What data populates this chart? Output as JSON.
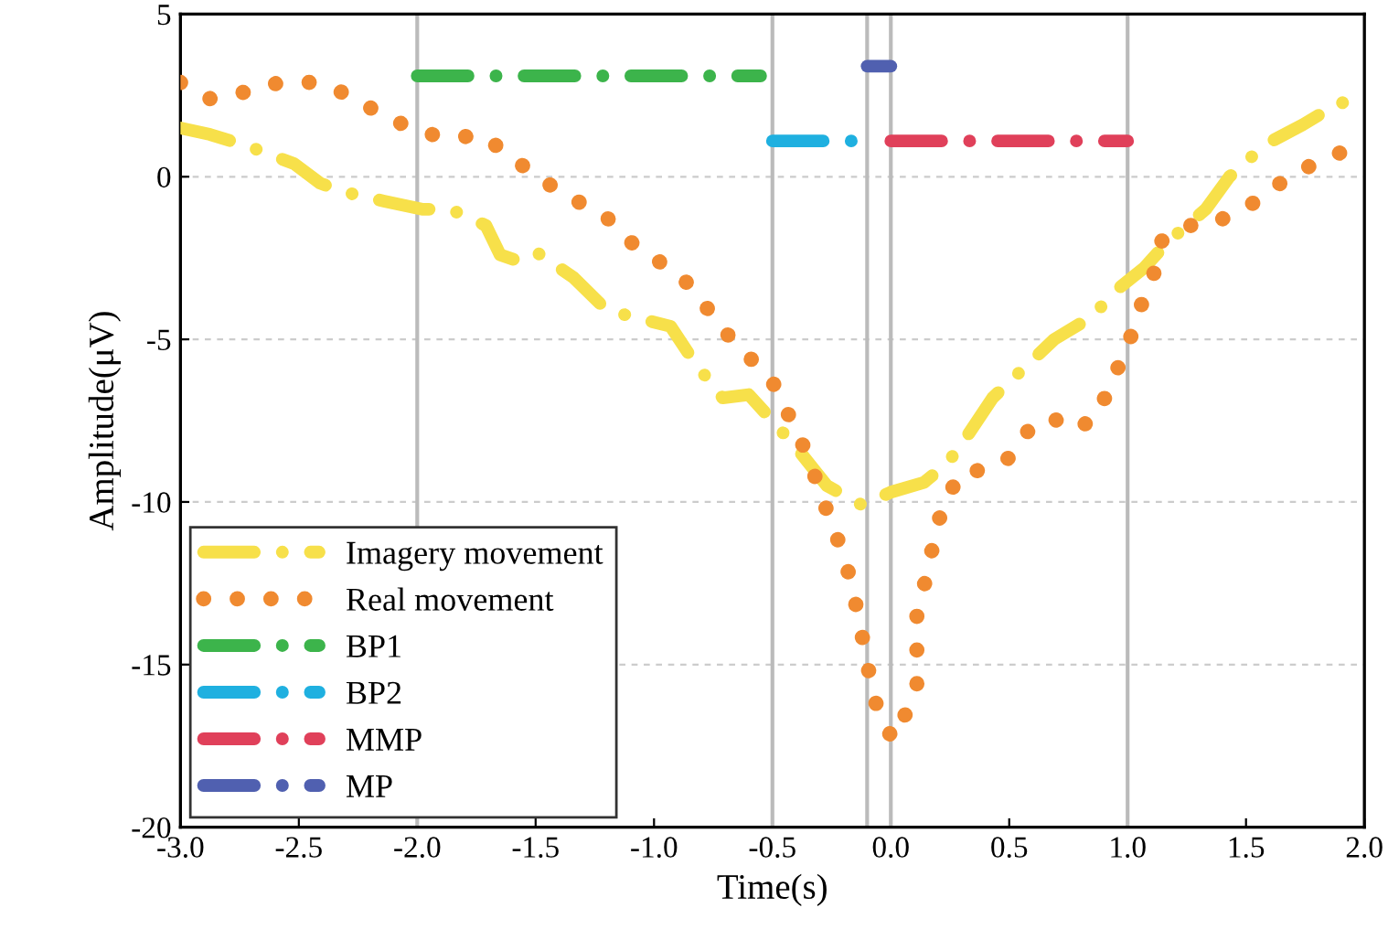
{
  "chart_data": {
    "type": "line",
    "xlabel": "Time(s)",
    "ylabel": "Amplitude(μV)",
    "xlim": [
      -3.0,
      2.0
    ],
    "ylim": [
      -20,
      5
    ],
    "xticks": [
      {
        "value": -3.0,
        "label": "-3.0"
      },
      {
        "value": -2.5,
        "label": "-2.5"
      },
      {
        "value": -2.0,
        "label": "-2.0"
      },
      {
        "value": -1.5,
        "label": "-1.5"
      },
      {
        "value": -1.0,
        "label": "-1.0"
      },
      {
        "value": -0.5,
        "label": "-0.5"
      },
      {
        "value": 0.0,
        "label": "0.0"
      },
      {
        "value": 0.5,
        "label": "0.5"
      },
      {
        "value": 1.0,
        "label": "1.0"
      },
      {
        "value": 1.5,
        "label": "1.5"
      },
      {
        "value": 2.0,
        "label": "2.0"
      }
    ],
    "yticks": [
      5,
      0,
      -5,
      -10,
      -15,
      -20
    ],
    "grid": "y",
    "legend": "bottom left",
    "ref_lines": [
      {
        "axis": "x",
        "value": -2.0,
        "color": "#bbbbbb"
      },
      {
        "axis": "x",
        "value": -0.5,
        "color": "#bbbbbb"
      },
      {
        "axis": "x",
        "value": -0.1,
        "color": "#bbbbbb"
      },
      {
        "axis": "x",
        "value": 0.0,
        "color": "#bbbbbb"
      },
      {
        "axis": "x",
        "value": 1.0,
        "color": "#bbbbbb"
      }
    ],
    "series": [
      {
        "name": "Imagery movement",
        "color": "#f7e04a",
        "line_style": "dashdot",
        "x": [
          -3.0,
          -2.875,
          -2.7,
          -2.52,
          -2.41,
          -2.32,
          -2.14,
          -1.98,
          -1.86,
          -1.71,
          -1.65,
          -1.59,
          -1.5,
          -1.34,
          -1.2,
          -0.93,
          -0.83,
          -0.71,
          -0.6,
          -0.5,
          -0.38,
          -0.27,
          -0.12,
          0.0,
          0.14,
          0.24,
          0.32,
          0.43,
          0.56,
          0.69,
          0.85,
          0.95,
          1.07,
          1.17,
          1.33,
          1.43,
          1.56,
          1.61,
          1.74,
          1.9,
          1.96
        ],
        "values": [
          1.5,
          1.3,
          0.9,
          0.4,
          -0.2,
          -0.45,
          -0.75,
          -1.0,
          -1.0,
          -1.5,
          -2.4,
          -2.55,
          -2.3,
          -3.1,
          -4.1,
          -4.6,
          -5.7,
          -6.8,
          -6.7,
          -7.5,
          -8.5,
          -9.5,
          -10.1,
          -9.7,
          -9.4,
          -8.8,
          -8.0,
          -6.8,
          -5.9,
          -5.0,
          -4.3,
          -3.5,
          -2.8,
          -2.0,
          -1.0,
          0.0,
          0.85,
          1.1,
          1.6,
          2.3,
          2.1
        ]
      },
      {
        "name": "Real movement",
        "color": "#f08a30",
        "line_style": "dotted",
        "x": [
          -3.0,
          -2.875,
          -2.73,
          -2.58,
          -2.44,
          -2.3,
          -2.17,
          -2.03,
          -1.94,
          -1.83,
          -1.73,
          -1.62,
          -1.53,
          -1.41,
          -1.3,
          -1.2,
          -1.1,
          -0.98,
          -0.88,
          -0.79,
          -0.71,
          -0.63,
          -0.5,
          -0.44,
          -0.38,
          -0.33,
          -0.29,
          -0.24,
          -0.2,
          -0.16,
          -0.14,
          -0.11,
          -0.1,
          -0.08,
          -0.04,
          0.01,
          0.07,
          0.11,
          0.11,
          0.11,
          0.14,
          0.17,
          0.2,
          0.24,
          0.29,
          0.41,
          0.51,
          0.59,
          0.68,
          0.77,
          0.87,
          0.92,
          0.97,
          1.02,
          1.06,
          1.11,
          1.14,
          1.24,
          1.35,
          1.45,
          1.56,
          1.67,
          1.7,
          1.8,
          1.92
        ],
        "values": [
          2.9,
          2.4,
          2.6,
          2.9,
          2.9,
          2.55,
          2.0,
          1.5,
          1.3,
          1.2,
          1.3,
          0.7,
          0.2,
          -0.4,
          -0.85,
          -1.25,
          -2.0,
          -2.6,
          -3.1,
          -3.9,
          -4.7,
          -5.3,
          -6.3,
          -7.2,
          -8.1,
          -9.0,
          -9.9,
          -10.8,
          -11.7,
          -12.6,
          -13.5,
          -14.5,
          -14.9,
          -15.8,
          -16.7,
          -17.3,
          -16.4,
          -15.7,
          -14.5,
          -13.5,
          -12.6,
          -11.6,
          -10.6,
          -9.9,
          -9.1,
          -9.0,
          -8.6,
          -7.7,
          -7.4,
          -7.8,
          -7.4,
          -6.5,
          -5.7,
          -4.8,
          -3.9,
          -3.0,
          -2.0,
          -1.5,
          -1.5,
          -1.1,
          -0.7,
          -0.05,
          0.05,
          0.45,
          0.8
        ]
      },
      {
        "name": "BP1",
        "color": "#3cb44b",
        "line_style": "dashdot",
        "x": [
          -2.0,
          -0.55
        ],
        "values": [
          3.1,
          3.1
        ]
      },
      {
        "name": "BP2",
        "color": "#1fb0e0",
        "line_style": "dashdot",
        "x": [
          -0.5,
          -0.1
        ],
        "values": [
          1.1,
          1.1
        ]
      },
      {
        "name": "MMP",
        "color": "#e0405a",
        "line_style": "dashdot",
        "x": [
          0.0,
          1.0
        ],
        "values": [
          1.1,
          1.1
        ]
      },
      {
        "name": "MP",
        "color": "#5060b0",
        "line_style": "dashdot",
        "x": [
          -0.1,
          0.0
        ],
        "values": [
          3.4,
          3.4
        ]
      }
    ]
  }
}
